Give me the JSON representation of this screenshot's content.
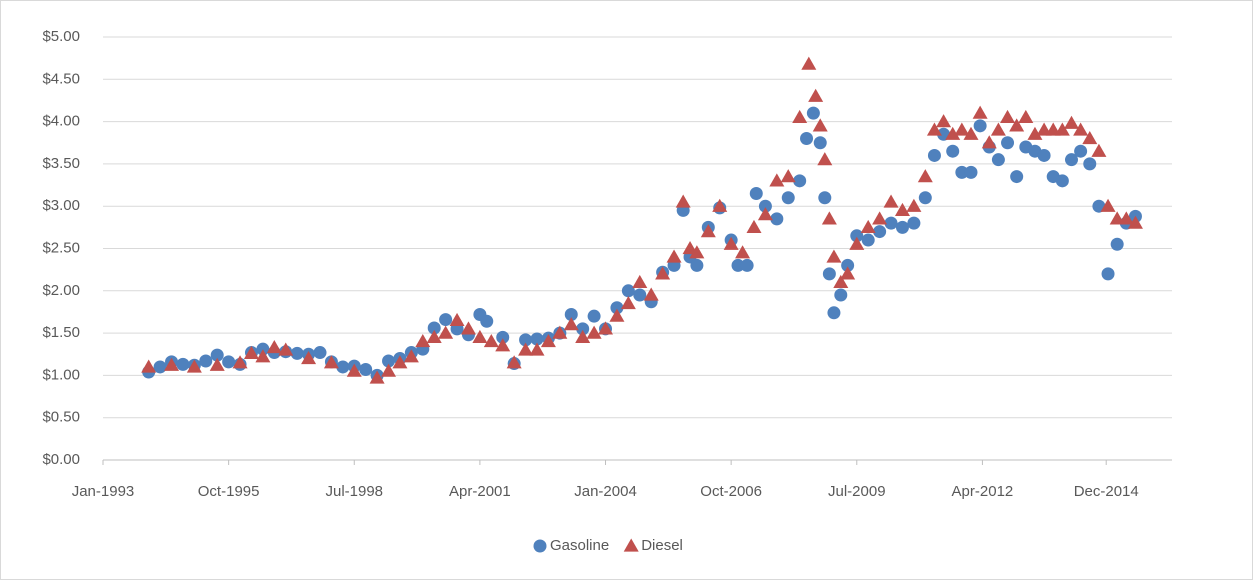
{
  "chart_data": {
    "type": "scatter",
    "xlim": [
      1993.0,
      2016.4
    ],
    "xticks": [
      {
        "value": 1993.0,
        "label": "Jan-1993"
      },
      {
        "value": 1995.75,
        "label": "Oct-1995"
      },
      {
        "value": 1998.5,
        "label": "Jul-1998"
      },
      {
        "value": 2001.25,
        "label": "Apr-2001"
      },
      {
        "value": 2004.0,
        "label": "Jan-2004"
      },
      {
        "value": 2006.75,
        "label": "Oct-2006"
      },
      {
        "value": 2009.5,
        "label": "Jul-2009"
      },
      {
        "value": 2012.25,
        "label": "Apr-2012"
      },
      {
        "value": 2014.96,
        "label": "Dec-2014"
      }
    ],
    "ylim": [
      0,
      5
    ],
    "yticks": [
      {
        "value": 0,
        "label": "$0.00"
      },
      {
        "value": 0.5,
        "label": "$0.50"
      },
      {
        "value": 1,
        "label": "$1.00"
      },
      {
        "value": 1.5,
        "label": "$1.50"
      },
      {
        "value": 2,
        "label": "$2.00"
      },
      {
        "value": 2.5,
        "label": "$2.50"
      },
      {
        "value": 3,
        "label": "$3.00"
      },
      {
        "value": 3.5,
        "label": "$3.50"
      },
      {
        "value": 4,
        "label": "$4.00"
      },
      {
        "value": 4.5,
        "label": "$4.50"
      },
      {
        "value": 5,
        "label": "$5.00"
      }
    ],
    "grid": true,
    "legend": "bottom",
    "series": [
      {
        "name": "Gasoline",
        "color": "#4f81bd",
        "marker": "circle",
        "x": [
          1994.0,
          1994.25,
          1994.5,
          1994.75,
          1995.0,
          1995.25,
          1995.5,
          1995.75,
          1996.0,
          1996.25,
          1996.5,
          1996.75,
          1997.0,
          1997.25,
          1997.5,
          1997.75,
          1998.0,
          1998.25,
          1998.5,
          1998.75,
          1999.0,
          1999.25,
          1999.5,
          1999.75,
          2000.0,
          2000.25,
          2000.5,
          2000.75,
          2001.0,
          2001.25,
          2001.4,
          2001.75,
          2002.0,
          2002.25,
          2002.5,
          2002.75,
          2003.0,
          2003.25,
          2003.5,
          2003.75,
          2004.0,
          2004.25,
          2004.5,
          2004.75,
          2005.0,
          2005.25,
          2005.5,
          2005.7,
          2005.85,
          2006.0,
          2006.25,
          2006.5,
          2006.75,
          2006.9,
          2007.1,
          2007.3,
          2007.5,
          2007.75,
          2008.0,
          2008.25,
          2008.4,
          2008.55,
          2008.7,
          2008.8,
          2008.9,
          2009.0,
          2009.15,
          2009.3,
          2009.5,
          2009.75,
          2010.0,
          2010.25,
          2010.5,
          2010.75,
          2011.0,
          2011.2,
          2011.4,
          2011.6,
          2011.8,
          2012.0,
          2012.2,
          2012.4,
          2012.6,
          2012.8,
          2013.0,
          2013.2,
          2013.4,
          2013.6,
          2013.8,
          2014.0,
          2014.2,
          2014.4,
          2014.6,
          2014.8,
          2015.0,
          2015.2,
          2015.4,
          2015.6
        ],
        "values": [
          1.04,
          1.1,
          1.16,
          1.13,
          1.12,
          1.17,
          1.24,
          1.16,
          1.13,
          1.27,
          1.31,
          1.27,
          1.28,
          1.26,
          1.25,
          1.27,
          1.16,
          1.1,
          1.11,
          1.07,
          1.0,
          1.17,
          1.2,
          1.27,
          1.31,
          1.56,
          1.66,
          1.55,
          1.48,
          1.72,
          1.64,
          1.45,
          1.14,
          1.42,
          1.43,
          1.44,
          1.5,
          1.72,
          1.55,
          1.7,
          1.55,
          1.8,
          2.0,
          1.95,
          1.87,
          2.22,
          2.3,
          2.95,
          2.4,
          2.3,
          2.75,
          2.98,
          2.6,
          2.3,
          2.3,
          3.15,
          3.0,
          2.85,
          3.1,
          3.3,
          3.8,
          4.1,
          3.75,
          3.1,
          2.2,
          1.74,
          1.95,
          2.3,
          2.65,
          2.6,
          2.7,
          2.8,
          2.75,
          2.8,
          3.1,
          3.6,
          3.85,
          3.65,
          3.4,
          3.4,
          3.95,
          3.7,
          3.55,
          3.75,
          3.35,
          3.7,
          3.65,
          3.6,
          3.35,
          3.3,
          3.55,
          3.65,
          3.5,
          3.0,
          2.2,
          2.55,
          2.8,
          2.88
        ]
      },
      {
        "name": "Diesel",
        "color": "#c0504d",
        "marker": "triangle",
        "x": [
          1994.0,
          1994.5,
          1995.0,
          1995.5,
          1996.0,
          1996.25,
          1996.5,
          1996.75,
          1997.0,
          1997.5,
          1998.0,
          1998.5,
          1999.0,
          1999.25,
          1999.5,
          1999.75,
          2000.0,
          2000.25,
          2000.5,
          2000.75,
          2001.0,
          2001.25,
          2001.5,
          2001.75,
          2002.0,
          2002.25,
          2002.5,
          2002.75,
          2003.0,
          2003.25,
          2003.5,
          2003.75,
          2004.0,
          2004.25,
          2004.5,
          2004.75,
          2005.0,
          2005.25,
          2005.5,
          2005.7,
          2005.85,
          2006.0,
          2006.25,
          2006.5,
          2006.75,
          2007.0,
          2007.25,
          2007.5,
          2007.75,
          2008.0,
          2008.25,
          2008.45,
          2008.6,
          2008.7,
          2008.8,
          2008.9,
          2009.0,
          2009.15,
          2009.3,
          2009.5,
          2009.75,
          2010.0,
          2010.25,
          2010.5,
          2010.75,
          2011.0,
          2011.2,
          2011.4,
          2011.6,
          2011.8,
          2012.0,
          2012.2,
          2012.4,
          2012.6,
          2012.8,
          2013.0,
          2013.2,
          2013.4,
          2013.6,
          2013.8,
          2014.0,
          2014.2,
          2014.4,
          2014.6,
          2014.8,
          2015.0,
          2015.2,
          2015.4,
          2015.6
        ],
        "values": [
          1.1,
          1.12,
          1.1,
          1.12,
          1.15,
          1.26,
          1.22,
          1.33,
          1.3,
          1.2,
          1.15,
          1.05,
          0.97,
          1.05,
          1.15,
          1.22,
          1.4,
          1.45,
          1.5,
          1.65,
          1.55,
          1.45,
          1.4,
          1.35,
          1.15,
          1.3,
          1.3,
          1.4,
          1.5,
          1.6,
          1.45,
          1.5,
          1.55,
          1.7,
          1.85,
          2.1,
          1.95,
          2.2,
          2.4,
          3.05,
          2.5,
          2.45,
          2.7,
          3.0,
          2.55,
          2.45,
          2.75,
          2.9,
          3.3,
          3.35,
          4.05,
          4.68,
          4.3,
          3.95,
          3.55,
          2.85,
          2.4,
          2.1,
          2.2,
          2.55,
          2.75,
          2.85,
          3.05,
          2.95,
          3.0,
          3.35,
          3.9,
          4.0,
          3.85,
          3.9,
          3.85,
          4.1,
          3.75,
          3.9,
          4.05,
          3.95,
          4.05,
          3.85,
          3.9,
          3.9,
          3.9,
          3.98,
          3.9,
          3.8,
          3.65,
          3.0,
          2.85,
          2.85,
          2.8
        ]
      }
    ]
  }
}
